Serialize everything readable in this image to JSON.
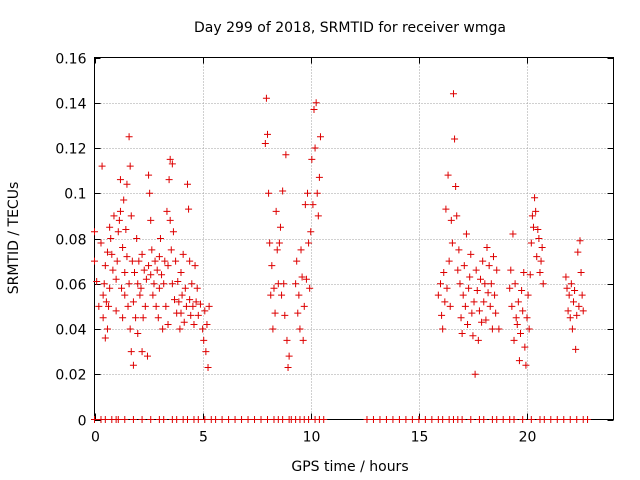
{
  "chart_data": {
    "type": "scatter",
    "title": "Day 299 of 2018, SRMTID for receiver wmga",
    "xlabel": "GPS time / hours",
    "ylabel": "SRMTID / TECUs",
    "xlim": [
      0,
      24
    ],
    "ylim": [
      0,
      0.16
    ],
    "x_ticks": [
      0,
      5,
      10,
      15,
      20
    ],
    "x_tick_labels": [
      "0",
      "5",
      "10",
      "15",
      "20"
    ],
    "y_ticks": [
      0,
      0.02,
      0.04,
      0.06,
      0.08,
      0.1,
      0.12,
      0.14,
      0.16
    ],
    "y_tick_labels": [
      "0",
      "0.02",
      "0.04",
      "0.06",
      "0.08",
      "0.1",
      "0.12",
      "0.14",
      "0.16"
    ],
    "grid": true,
    "marker": "+",
    "color": "#dd0000",
    "series": [
      {
        "name": "SRMTID",
        "points": [
          [
            0.0,
            0.083
          ],
          [
            0.0,
            0.07
          ],
          [
            0.1,
            0.061
          ],
          [
            0.2,
            0.05
          ],
          [
            0.3,
            0.078
          ],
          [
            0.35,
            0.112
          ],
          [
            0.4,
            0.045
          ],
          [
            0.4,
            0.055
          ],
          [
            0.45,
            0.06
          ],
          [
            0.5,
            0.036
          ],
          [
            0.5,
            0.068
          ],
          [
            0.55,
            0.052
          ],
          [
            0.6,
            0.074
          ],
          [
            0.6,
            0.04
          ],
          [
            0.65,
            0.05
          ],
          [
            0.7,
            0.085
          ],
          [
            0.7,
            0.058
          ],
          [
            0.75,
            0.08
          ],
          [
            0.8,
            0.073
          ],
          [
            0.85,
            0.066
          ],
          [
            0.9,
            0.09
          ],
          [
            1.0,
            0.062
          ],
          [
            1.0,
            0.048
          ],
          [
            1.05,
            0.07
          ],
          [
            1.1,
            0.083
          ],
          [
            1.15,
            0.088
          ],
          [
            1.2,
            0.106
          ],
          [
            1.2,
            0.092
          ],
          [
            1.25,
            0.058
          ],
          [
            1.3,
            0.076
          ],
          [
            1.3,
            0.045
          ],
          [
            1.35,
            0.097
          ],
          [
            1.4,
            0.065
          ],
          [
            1.4,
            0.055
          ],
          [
            1.45,
            0.084
          ],
          [
            1.5,
            0.104
          ],
          [
            1.5,
            0.072
          ],
          [
            1.55,
            0.05
          ],
          [
            1.6,
            0.125
          ],
          [
            1.6,
            0.06
          ],
          [
            1.65,
            0.112
          ],
          [
            1.65,
            0.04
          ],
          [
            1.7,
            0.09
          ],
          [
            1.7,
            0.03
          ],
          [
            1.75,
            0.07
          ],
          [
            1.8,
            0.024
          ],
          [
            1.8,
            0.052
          ],
          [
            1.85,
            0.065
          ],
          [
            1.9,
            0.045
          ],
          [
            1.95,
            0.08
          ],
          [
            2.0,
            0.06
          ],
          [
            2.0,
            0.038
          ],
          [
            2.05,
            0.07
          ],
          [
            2.1,
            0.055
          ],
          [
            2.15,
            0.058
          ],
          [
            2.2,
            0.03
          ],
          [
            2.2,
            0.073
          ],
          [
            2.25,
            0.045
          ],
          [
            2.3,
            0.066
          ],
          [
            2.35,
            0.05
          ],
          [
            2.4,
            0.062
          ],
          [
            2.45,
            0.028
          ],
          [
            2.5,
            0.068
          ],
          [
            2.5,
            0.108
          ],
          [
            2.55,
            0.1
          ],
          [
            2.6,
            0.088
          ],
          [
            2.6,
            0.064
          ],
          [
            2.65,
            0.075
          ],
          [
            2.7,
            0.055
          ],
          [
            2.75,
            0.06
          ],
          [
            2.8,
            0.07
          ],
          [
            2.85,
            0.05
          ],
          [
            2.9,
            0.066
          ],
          [
            2.95,
            0.045
          ],
          [
            3.0,
            0.072
          ],
          [
            3.0,
            0.058
          ],
          [
            3.05,
            0.08
          ],
          [
            3.1,
            0.064
          ],
          [
            3.15,
            0.04
          ],
          [
            3.2,
            0.06
          ],
          [
            3.25,
            0.07
          ],
          [
            3.3,
            0.05
          ],
          [
            3.35,
            0.092
          ],
          [
            3.4,
            0.068
          ],
          [
            3.4,
            0.042
          ],
          [
            3.45,
            0.106
          ],
          [
            3.5,
            0.115
          ],
          [
            3.5,
            0.088
          ],
          [
            3.55,
            0.075
          ],
          [
            3.6,
            0.113
          ],
          [
            3.6,
            0.06
          ],
          [
            3.65,
            0.083
          ],
          [
            3.7,
            0.053
          ],
          [
            3.75,
            0.07
          ],
          [
            3.8,
            0.047
          ],
          [
            3.85,
            0.061
          ],
          [
            3.9,
            0.052
          ],
          [
            3.95,
            0.04
          ],
          [
            4.0,
            0.065
          ],
          [
            4.0,
            0.047
          ],
          [
            4.05,
            0.055
          ],
          [
            4.1,
            0.073
          ],
          [
            4.15,
            0.043
          ],
          [
            4.2,
            0.058
          ],
          [
            4.25,
            0.05
          ],
          [
            4.3,
            0.104
          ],
          [
            4.35,
            0.093
          ],
          [
            4.4,
            0.07
          ],
          [
            4.4,
            0.053
          ],
          [
            4.45,
            0.046
          ],
          [
            4.5,
            0.06
          ],
          [
            4.55,
            0.05
          ],
          [
            4.6,
            0.042
          ],
          [
            4.65,
            0.068
          ],
          [
            4.7,
            0.052
          ],
          [
            4.75,
            0.058
          ],
          [
            4.8,
            0.046
          ],
          [
            4.9,
            0.051
          ],
          [
            5.0,
            0.04
          ],
          [
            5.05,
            0.035
          ],
          [
            5.1,
            0.048
          ],
          [
            5.15,
            0.03
          ],
          [
            5.2,
            0.042
          ],
          [
            5.25,
            0.023
          ],
          [
            5.3,
            0.05
          ],
          [
            7.9,
            0.122
          ],
          [
            7.95,
            0.142
          ],
          [
            8.0,
            0.126
          ],
          [
            8.05,
            0.1
          ],
          [
            8.1,
            0.078
          ],
          [
            8.15,
            0.055
          ],
          [
            8.2,
            0.068
          ],
          [
            8.25,
            0.04
          ],
          [
            8.3,
            0.058
          ],
          [
            8.35,
            0.047
          ],
          [
            8.4,
            0.092
          ],
          [
            8.45,
            0.075
          ],
          [
            8.5,
            0.06
          ],
          [
            8.55,
            0.078
          ],
          [
            8.6,
            0.085
          ],
          [
            8.65,
            0.055
          ],
          [
            8.7,
            0.101
          ],
          [
            8.75,
            0.06
          ],
          [
            8.8,
            0.046
          ],
          [
            8.85,
            0.117
          ],
          [
            8.9,
            0.035
          ],
          [
            8.95,
            0.023
          ],
          [
            9.0,
            0.028
          ],
          [
            9.3,
            0.06
          ],
          [
            9.35,
            0.07
          ],
          [
            9.4,
            0.047
          ],
          [
            9.45,
            0.055
          ],
          [
            9.5,
            0.04
          ],
          [
            9.55,
            0.075
          ],
          [
            9.6,
            0.063
          ],
          [
            9.65,
            0.035
          ],
          [
            9.7,
            0.05
          ],
          [
            9.75,
            0.095
          ],
          [
            9.8,
            0.062
          ],
          [
            9.85,
            0.1
          ],
          [
            9.9,
            0.078
          ],
          [
            9.95,
            0.058
          ],
          [
            10.0,
            0.083
          ],
          [
            10.05,
            0.115
          ],
          [
            10.1,
            0.095
          ],
          [
            10.15,
            0.137
          ],
          [
            10.2,
            0.12
          ],
          [
            10.25,
            0.14
          ],
          [
            10.3,
            0.1
          ],
          [
            10.35,
            0.09
          ],
          [
            10.4,
            0.107
          ],
          [
            10.45,
            0.125
          ],
          [
            15.9,
            0.055
          ],
          [
            16.0,
            0.06
          ],
          [
            16.05,
            0.046
          ],
          [
            16.1,
            0.04
          ],
          [
            16.15,
            0.065
          ],
          [
            16.2,
            0.052
          ],
          [
            16.25,
            0.093
          ],
          [
            16.3,
            0.058
          ],
          [
            16.35,
            0.108
          ],
          [
            16.4,
            0.07
          ],
          [
            16.45,
            0.05
          ],
          [
            16.5,
            0.088
          ],
          [
            16.55,
            0.078
          ],
          [
            16.6,
            0.144
          ],
          [
            16.65,
            0.124
          ],
          [
            16.7,
            0.103
          ],
          [
            16.75,
            0.09
          ],
          [
            16.8,
            0.066
          ],
          [
            16.85,
            0.075
          ],
          [
            16.9,
            0.06
          ],
          [
            16.95,
            0.045
          ],
          [
            17.0,
            0.038
          ],
          [
            17.05,
            0.055
          ],
          [
            17.1,
            0.068
          ],
          [
            17.15,
            0.05
          ],
          [
            17.2,
            0.082
          ],
          [
            17.25,
            0.042
          ],
          [
            17.3,
            0.058
          ],
          [
            17.35,
            0.063
          ],
          [
            17.4,
            0.073
          ],
          [
            17.45,
            0.047
          ],
          [
            17.5,
            0.037
          ],
          [
            17.55,
            0.052
          ],
          [
            17.6,
            0.02
          ],
          [
            17.65,
            0.066
          ],
          [
            17.7,
            0.057
          ],
          [
            17.75,
            0.035
          ],
          [
            17.8,
            0.048
          ],
          [
            17.85,
            0.062
          ],
          [
            17.9,
            0.043
          ],
          [
            17.95,
            0.07
          ],
          [
            18.0,
            0.052
          ],
          [
            18.05,
            0.06
          ],
          [
            18.1,
            0.044
          ],
          [
            18.15,
            0.076
          ],
          [
            18.2,
            0.056
          ],
          [
            18.25,
            0.068
          ],
          [
            18.3,
            0.05
          ],
          [
            18.35,
            0.06
          ],
          [
            18.4,
            0.04
          ],
          [
            18.45,
            0.072
          ],
          [
            18.5,
            0.055
          ],
          [
            18.55,
            0.047
          ],
          [
            18.6,
            0.066
          ],
          [
            18.7,
            0.04
          ],
          [
            19.2,
            0.058
          ],
          [
            19.25,
            0.066
          ],
          [
            19.3,
            0.05
          ],
          [
            19.35,
            0.082
          ],
          [
            19.4,
            0.035
          ],
          [
            19.45,
            0.06
          ],
          [
            19.5,
            0.045
          ],
          [
            19.55,
            0.042
          ],
          [
            19.6,
            0.052
          ],
          [
            19.65,
            0.026
          ],
          [
            19.7,
            0.038
          ],
          [
            19.75,
            0.057
          ],
          [
            19.8,
            0.048
          ],
          [
            19.85,
            0.065
          ],
          [
            19.9,
            0.032
          ],
          [
            19.95,
            0.024
          ],
          [
            20.0,
            0.045
          ],
          [
            20.05,
            0.055
          ],
          [
            20.1,
            0.04
          ],
          [
            20.15,
            0.064
          ],
          [
            20.2,
            0.078
          ],
          [
            20.25,
            0.09
          ],
          [
            20.3,
            0.085
          ],
          [
            20.35,
            0.098
          ],
          [
            20.4,
            0.092
          ],
          [
            20.45,
            0.072
          ],
          [
            20.5,
            0.084
          ],
          [
            20.55,
            0.08
          ],
          [
            20.6,
            0.065
          ],
          [
            20.65,
            0.07
          ],
          [
            20.7,
            0.076
          ],
          [
            20.75,
            0.06
          ],
          [
            21.8,
            0.063
          ],
          [
            21.85,
            0.058
          ],
          [
            21.9,
            0.048
          ],
          [
            21.95,
            0.055
          ],
          [
            22.0,
            0.045
          ],
          [
            22.05,
            0.06
          ],
          [
            22.1,
            0.04
          ],
          [
            22.15,
            0.052
          ],
          [
            22.2,
            0.057
          ],
          [
            22.25,
            0.031
          ],
          [
            22.3,
            0.046
          ],
          [
            22.35,
            0.074
          ],
          [
            22.4,
            0.05
          ],
          [
            22.45,
            0.079
          ],
          [
            22.5,
            0.065
          ],
          [
            22.55,
            0.055
          ],
          [
            22.6,
            0.048
          ]
        ],
        "baseline_zero_x": [
          0.0,
          0.3,
          0.5,
          0.8,
          1.0,
          1.1,
          1.4,
          1.8,
          2.2,
          2.6,
          3.0,
          3.2,
          3.6,
          3.8,
          4.1,
          4.3,
          4.6,
          4.8,
          5.1,
          5.4,
          5.6,
          5.9,
          6.2,
          6.5,
          6.8,
          7.1,
          7.4,
          7.7,
          8.0,
          8.3,
          8.5,
          8.7,
          9.0,
          9.1,
          9.3,
          9.5,
          9.7,
          9.9,
          10.2,
          10.4,
          10.6,
          12.6,
          12.9,
          13.2,
          13.5,
          13.8,
          14.1,
          14.4,
          14.7,
          15.0,
          15.3,
          15.6,
          15.9,
          16.1,
          16.4,
          16.6,
          16.8,
          17.0,
          17.4,
          17.8,
          18.0,
          18.4,
          18.6,
          18.9,
          19.2,
          19.4,
          19.8,
          20.2,
          20.6,
          20.8,
          21.1,
          21.4,
          21.7,
          22.0,
          22.3,
          22.6,
          22.8
        ]
      }
    ]
  }
}
